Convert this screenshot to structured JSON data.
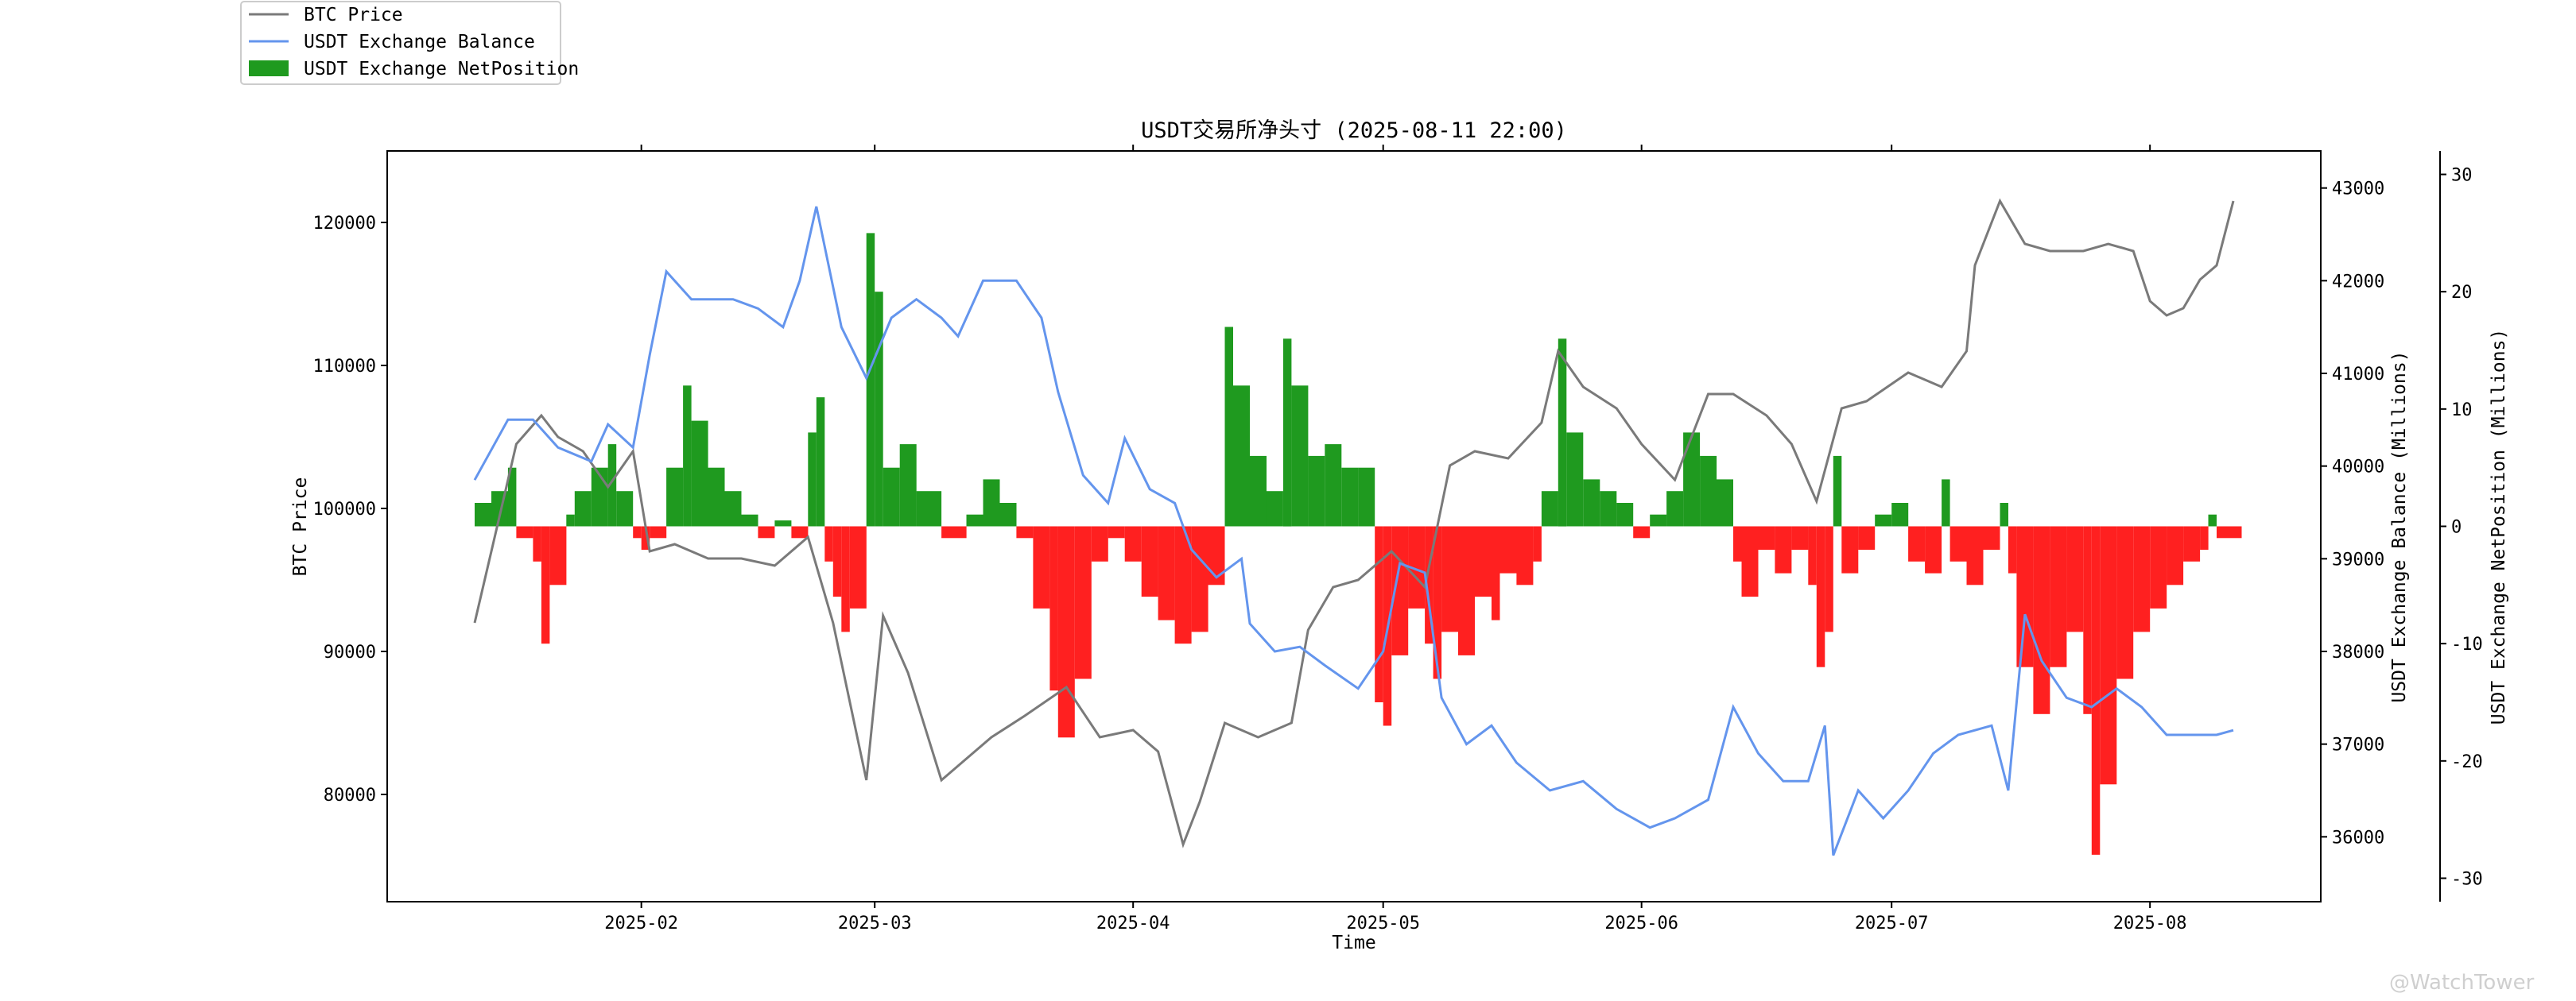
{
  "chart_data": {
    "type": "line",
    "title": "USDT交易所净头寸 (2025-08-11 22:00)",
    "xlabel": "Time",
    "ylabel_left": "BTC Price",
    "ylabel_right": "USDT Exchange Balance (Millions)",
    "ylabel_right2": "USDT Exchange NetPosition (Millions)",
    "x_range": [
      "2025-01-12",
      "2025-08-11"
    ],
    "x_ticks": [
      "2025-02",
      "2025-03",
      "2025-04",
      "2025-05",
      "2025-06",
      "2025-07",
      "2025-08"
    ],
    "ylim_left": [
      72500,
      125000
    ],
    "yticks_left": [
      "80000",
      "90000",
      "100000",
      "110000",
      "120000"
    ],
    "ylim_right": [
      35300,
      43400
    ],
    "yticks_right": [
      "36000",
      "37000",
      "38000",
      "39000",
      "40000",
      "41000",
      "42000",
      "43000"
    ],
    "ylim_right2": [
      -32,
      32
    ],
    "yticks_right2": [
      "-30",
      "-20",
      "-10",
      "0",
      "10",
      "20",
      "30"
    ],
    "legend": {
      "placement": "top-left, outside plot",
      "entries": [
        "BTC Price",
        "USDT Exchange Balance",
        "USDT Exchange NetPosition"
      ]
    },
    "watermark": "@WatchTower",
    "colors": {
      "btc": "#7a7a7a",
      "balance": "#6495ed",
      "net_positive": "#1f9a1f",
      "net_negative": "#ff2020"
    },
    "series": [
      {
        "name": "BTC Price",
        "axis": "left",
        "points": [
          [
            "2025-01-12",
            92000
          ],
          [
            "2025-01-13",
            94500
          ],
          [
            "2025-01-15",
            99500
          ],
          [
            "2025-01-17",
            104500
          ],
          [
            "2025-01-20",
            106500
          ],
          [
            "2025-01-22",
            105000
          ],
          [
            "2025-01-25",
            104000
          ],
          [
            "2025-01-28",
            101500
          ],
          [
            "2025-01-31",
            104000
          ],
          [
            "2025-02-02",
            97000
          ],
          [
            "2025-02-05",
            97500
          ],
          [
            "2025-02-09",
            96500
          ],
          [
            "2025-02-13",
            96500
          ],
          [
            "2025-02-17",
            96000
          ],
          [
            "2025-02-21",
            98000
          ],
          [
            "2025-02-24",
            92000
          ],
          [
            "2025-02-28",
            81000
          ],
          [
            "2025-03-02",
            92500
          ],
          [
            "2025-03-05",
            88500
          ],
          [
            "2025-03-09",
            81000
          ],
          [
            "2025-03-12",
            82500
          ],
          [
            "2025-03-15",
            84000
          ],
          [
            "2025-03-19",
            85500
          ],
          [
            "2025-03-24",
            87500
          ],
          [
            "2025-03-28",
            84000
          ],
          [
            "2025-04-01",
            84500
          ],
          [
            "2025-04-04",
            83000
          ],
          [
            "2025-04-07",
            76500
          ],
          [
            "2025-04-09",
            79500
          ],
          [
            "2025-04-12",
            85000
          ],
          [
            "2025-04-16",
            84000
          ],
          [
            "2025-04-20",
            85000
          ],
          [
            "2025-04-22",
            91500
          ],
          [
            "2025-04-25",
            94500
          ],
          [
            "2025-04-28",
            95000
          ],
          [
            "2025-05-02",
            97000
          ],
          [
            "2025-05-06",
            94500
          ],
          [
            "2025-05-09",
            103000
          ],
          [
            "2025-05-12",
            104000
          ],
          [
            "2025-05-16",
            103500
          ],
          [
            "2025-05-20",
            106000
          ],
          [
            "2025-05-22",
            111000
          ],
          [
            "2025-05-25",
            108500
          ],
          [
            "2025-05-29",
            107000
          ],
          [
            "2025-06-01",
            104500
          ],
          [
            "2025-06-05",
            102000
          ],
          [
            "2025-06-09",
            108000
          ],
          [
            "2025-06-12",
            108000
          ],
          [
            "2025-06-16",
            106500
          ],
          [
            "2025-06-19",
            104500
          ],
          [
            "2025-06-22",
            100500
          ],
          [
            "2025-06-25",
            107000
          ],
          [
            "2025-06-28",
            107500
          ],
          [
            "2025-07-03",
            109500
          ],
          [
            "2025-07-07",
            108500
          ],
          [
            "2025-07-10",
            111000
          ],
          [
            "2025-07-11",
            117000
          ],
          [
            "2025-07-14",
            121500
          ],
          [
            "2025-07-17",
            118500
          ],
          [
            "2025-07-20",
            118000
          ],
          [
            "2025-07-24",
            118000
          ],
          [
            "2025-07-27",
            118500
          ],
          [
            "2025-07-30",
            118000
          ],
          [
            "2025-08-01",
            114500
          ],
          [
            "2025-08-03",
            113500
          ],
          [
            "2025-08-05",
            114000
          ],
          [
            "2025-08-07",
            116000
          ],
          [
            "2025-08-09",
            117000
          ],
          [
            "2025-08-11",
            121500
          ]
        ]
      },
      {
        "name": "USDT Exchange Balance",
        "axis": "right",
        "points": [
          [
            "2025-01-12",
            39850
          ],
          [
            "2025-01-16",
            40500
          ],
          [
            "2025-01-19",
            40500
          ],
          [
            "2025-01-22",
            40200
          ],
          [
            "2025-01-26",
            40050
          ],
          [
            "2025-01-28",
            40450
          ],
          [
            "2025-01-31",
            40200
          ],
          [
            "2025-02-02",
            41200
          ],
          [
            "2025-02-04",
            42100
          ],
          [
            "2025-02-07",
            41800
          ],
          [
            "2025-02-12",
            41800
          ],
          [
            "2025-02-15",
            41700
          ],
          [
            "2025-02-18",
            41500
          ],
          [
            "2025-02-20",
            42000
          ],
          [
            "2025-02-22",
            42800
          ],
          [
            "2025-02-25",
            41500
          ],
          [
            "2025-02-28",
            40950
          ],
          [
            "2025-03-03",
            41600
          ],
          [
            "2025-03-06",
            41800
          ],
          [
            "2025-03-09",
            41600
          ],
          [
            "2025-03-11",
            41400
          ],
          [
            "2025-03-14",
            42000
          ],
          [
            "2025-03-18",
            42000
          ],
          [
            "2025-03-21",
            41600
          ],
          [
            "2025-03-23",
            40800
          ],
          [
            "2025-03-26",
            39900
          ],
          [
            "2025-03-29",
            39600
          ],
          [
            "2025-03-31",
            40300
          ],
          [
            "2025-04-03",
            39750
          ],
          [
            "2025-04-06",
            39600
          ],
          [
            "2025-04-08",
            39100
          ],
          [
            "2025-04-11",
            38800
          ],
          [
            "2025-04-14",
            39000
          ],
          [
            "2025-04-15",
            38300
          ],
          [
            "2025-04-18",
            38000
          ],
          [
            "2025-04-21",
            38050
          ],
          [
            "2025-04-24",
            37850
          ],
          [
            "2025-04-28",
            37600
          ],
          [
            "2025-05-01",
            38000
          ],
          [
            "2025-05-03",
            38950
          ],
          [
            "2025-05-06",
            38850
          ],
          [
            "2025-05-08",
            37500
          ],
          [
            "2025-05-11",
            37000
          ],
          [
            "2025-05-14",
            37200
          ],
          [
            "2025-05-17",
            36800
          ],
          [
            "2025-05-21",
            36500
          ],
          [
            "2025-05-25",
            36600
          ],
          [
            "2025-05-29",
            36300
          ],
          [
            "2025-06-02",
            36100
          ],
          [
            "2025-06-05",
            36200
          ],
          [
            "2025-06-09",
            36400
          ],
          [
            "2025-06-12",
            37400
          ],
          [
            "2025-06-15",
            36900
          ],
          [
            "2025-06-18",
            36600
          ],
          [
            "2025-06-21",
            36600
          ],
          [
            "2025-06-23",
            37200
          ],
          [
            "2025-06-24",
            35800
          ],
          [
            "2025-06-27",
            36500
          ],
          [
            "2025-06-30",
            36200
          ],
          [
            "2025-07-03",
            36500
          ],
          [
            "2025-07-06",
            36900
          ],
          [
            "2025-07-09",
            37100
          ],
          [
            "2025-07-13",
            37200
          ],
          [
            "2025-07-15",
            36500
          ],
          [
            "2025-07-17",
            38400
          ],
          [
            "2025-07-19",
            37900
          ],
          [
            "2025-07-22",
            37500
          ],
          [
            "2025-07-25",
            37400
          ],
          [
            "2025-07-28",
            37600
          ],
          [
            "2025-07-31",
            37400
          ],
          [
            "2025-08-03",
            37100
          ],
          [
            "2025-08-06",
            37100
          ],
          [
            "2025-08-09",
            37100
          ],
          [
            "2025-08-11",
            37150
          ]
        ]
      },
      {
        "name": "USDT Exchange NetPosition",
        "axis": "right2",
        "type": "bar",
        "points": [
          [
            "2025-01-12",
            2
          ],
          [
            "2025-01-14",
            3
          ],
          [
            "2025-01-16",
            5
          ],
          [
            "2025-01-17",
            -1
          ],
          [
            "2025-01-19",
            -3
          ],
          [
            "2025-01-20",
            -10
          ],
          [
            "2025-01-21",
            -5
          ],
          [
            "2025-01-23",
            1
          ],
          [
            "2025-01-24",
            3
          ],
          [
            "2025-01-26",
            5
          ],
          [
            "2025-01-28",
            7
          ],
          [
            "2025-01-29",
            3
          ],
          [
            "2025-01-31",
            -1
          ],
          [
            "2025-02-01",
            -2
          ],
          [
            "2025-02-02",
            -1
          ],
          [
            "2025-02-04",
            5
          ],
          [
            "2025-02-06",
            12
          ],
          [
            "2025-02-07",
            9
          ],
          [
            "2025-02-09",
            5
          ],
          [
            "2025-02-11",
            3
          ],
          [
            "2025-02-13",
            1
          ],
          [
            "2025-02-15",
            -1
          ],
          [
            "2025-02-17",
            0.5
          ],
          [
            "2025-02-19",
            -1
          ],
          [
            "2025-02-21",
            8
          ],
          [
            "2025-02-22",
            11
          ],
          [
            "2025-02-23",
            -3
          ],
          [
            "2025-02-24",
            -6
          ],
          [
            "2025-02-25",
            -9
          ],
          [
            "2025-02-26",
            -7
          ],
          [
            "2025-02-28",
            25
          ],
          [
            "2025-03-01",
            20
          ],
          [
            "2025-03-02",
            5
          ],
          [
            "2025-03-04",
            7
          ],
          [
            "2025-03-06",
            3
          ],
          [
            "2025-03-09",
            -1
          ],
          [
            "2025-03-12",
            1
          ],
          [
            "2025-03-14",
            4
          ],
          [
            "2025-03-16",
            2
          ],
          [
            "2025-03-18",
            -1
          ],
          [
            "2025-03-20",
            -7
          ],
          [
            "2025-03-22",
            -14
          ],
          [
            "2025-03-23",
            -18
          ],
          [
            "2025-03-25",
            -13
          ],
          [
            "2025-03-27",
            -3
          ],
          [
            "2025-03-29",
            -1
          ],
          [
            "2025-03-31",
            -3
          ],
          [
            "2025-04-02",
            -6
          ],
          [
            "2025-04-04",
            -8
          ],
          [
            "2025-04-06",
            -10
          ],
          [
            "2025-04-08",
            -9
          ],
          [
            "2025-04-10",
            -5
          ],
          [
            "2025-04-12",
            17
          ],
          [
            "2025-04-13",
            12
          ],
          [
            "2025-04-15",
            6
          ],
          [
            "2025-04-17",
            3
          ],
          [
            "2025-04-19",
            16
          ],
          [
            "2025-04-20",
            12
          ],
          [
            "2025-04-22",
            6
          ],
          [
            "2025-04-24",
            7
          ],
          [
            "2025-04-26",
            5
          ],
          [
            "2025-04-28",
            5
          ],
          [
            "2025-04-30",
            -15
          ],
          [
            "2025-05-01",
            -17
          ],
          [
            "2025-05-02",
            -11
          ],
          [
            "2025-05-04",
            -7
          ],
          [
            "2025-05-06",
            -10
          ],
          [
            "2025-05-07",
            -13
          ],
          [
            "2025-05-08",
            -9
          ],
          [
            "2025-05-10",
            -11
          ],
          [
            "2025-05-12",
            -6
          ],
          [
            "2025-05-14",
            -8
          ],
          [
            "2025-05-15",
            -4
          ],
          [
            "2025-05-17",
            -5
          ],
          [
            "2025-05-19",
            -3
          ],
          [
            "2025-05-20",
            3
          ],
          [
            "2025-05-22",
            16
          ],
          [
            "2025-05-23",
            8
          ],
          [
            "2025-05-25",
            4
          ],
          [
            "2025-05-27",
            3
          ],
          [
            "2025-05-29",
            2
          ],
          [
            "2025-05-31",
            -1
          ],
          [
            "2025-06-02",
            1
          ],
          [
            "2025-06-04",
            3
          ],
          [
            "2025-06-06",
            8
          ],
          [
            "2025-06-08",
            6
          ],
          [
            "2025-06-10",
            4
          ],
          [
            "2025-06-12",
            -3
          ],
          [
            "2025-06-13",
            -6
          ],
          [
            "2025-06-15",
            -2
          ],
          [
            "2025-06-17",
            -4
          ],
          [
            "2025-06-19",
            -2
          ],
          [
            "2025-06-21",
            -5
          ],
          [
            "2025-06-22",
            -12
          ],
          [
            "2025-06-23",
            -9
          ],
          [
            "2025-06-24",
            6
          ],
          [
            "2025-06-25",
            -4
          ],
          [
            "2025-06-27",
            -2
          ],
          [
            "2025-06-29",
            1
          ],
          [
            "2025-07-01",
            2
          ],
          [
            "2025-07-03",
            -3
          ],
          [
            "2025-07-05",
            -4
          ],
          [
            "2025-07-07",
            4
          ],
          [
            "2025-07-08",
            -3
          ],
          [
            "2025-07-10",
            -5
          ],
          [
            "2025-07-12",
            -2
          ],
          [
            "2025-07-14",
            2
          ],
          [
            "2025-07-15",
            -4
          ],
          [
            "2025-07-16",
            -12
          ],
          [
            "2025-07-18",
            -16
          ],
          [
            "2025-07-20",
            -12
          ],
          [
            "2025-07-22",
            -9
          ],
          [
            "2025-07-24",
            -16
          ],
          [
            "2025-07-25",
            -28
          ],
          [
            "2025-07-26",
            -22
          ],
          [
            "2025-07-28",
            -13
          ],
          [
            "2025-07-30",
            -9
          ],
          [
            "2025-08-01",
            -7
          ],
          [
            "2025-08-03",
            -5
          ],
          [
            "2025-08-05",
            -3
          ],
          [
            "2025-08-07",
            -2
          ],
          [
            "2025-08-08",
            1
          ],
          [
            "2025-08-09",
            -1
          ],
          [
            "2025-08-11",
            -1
          ]
        ]
      }
    ]
  }
}
